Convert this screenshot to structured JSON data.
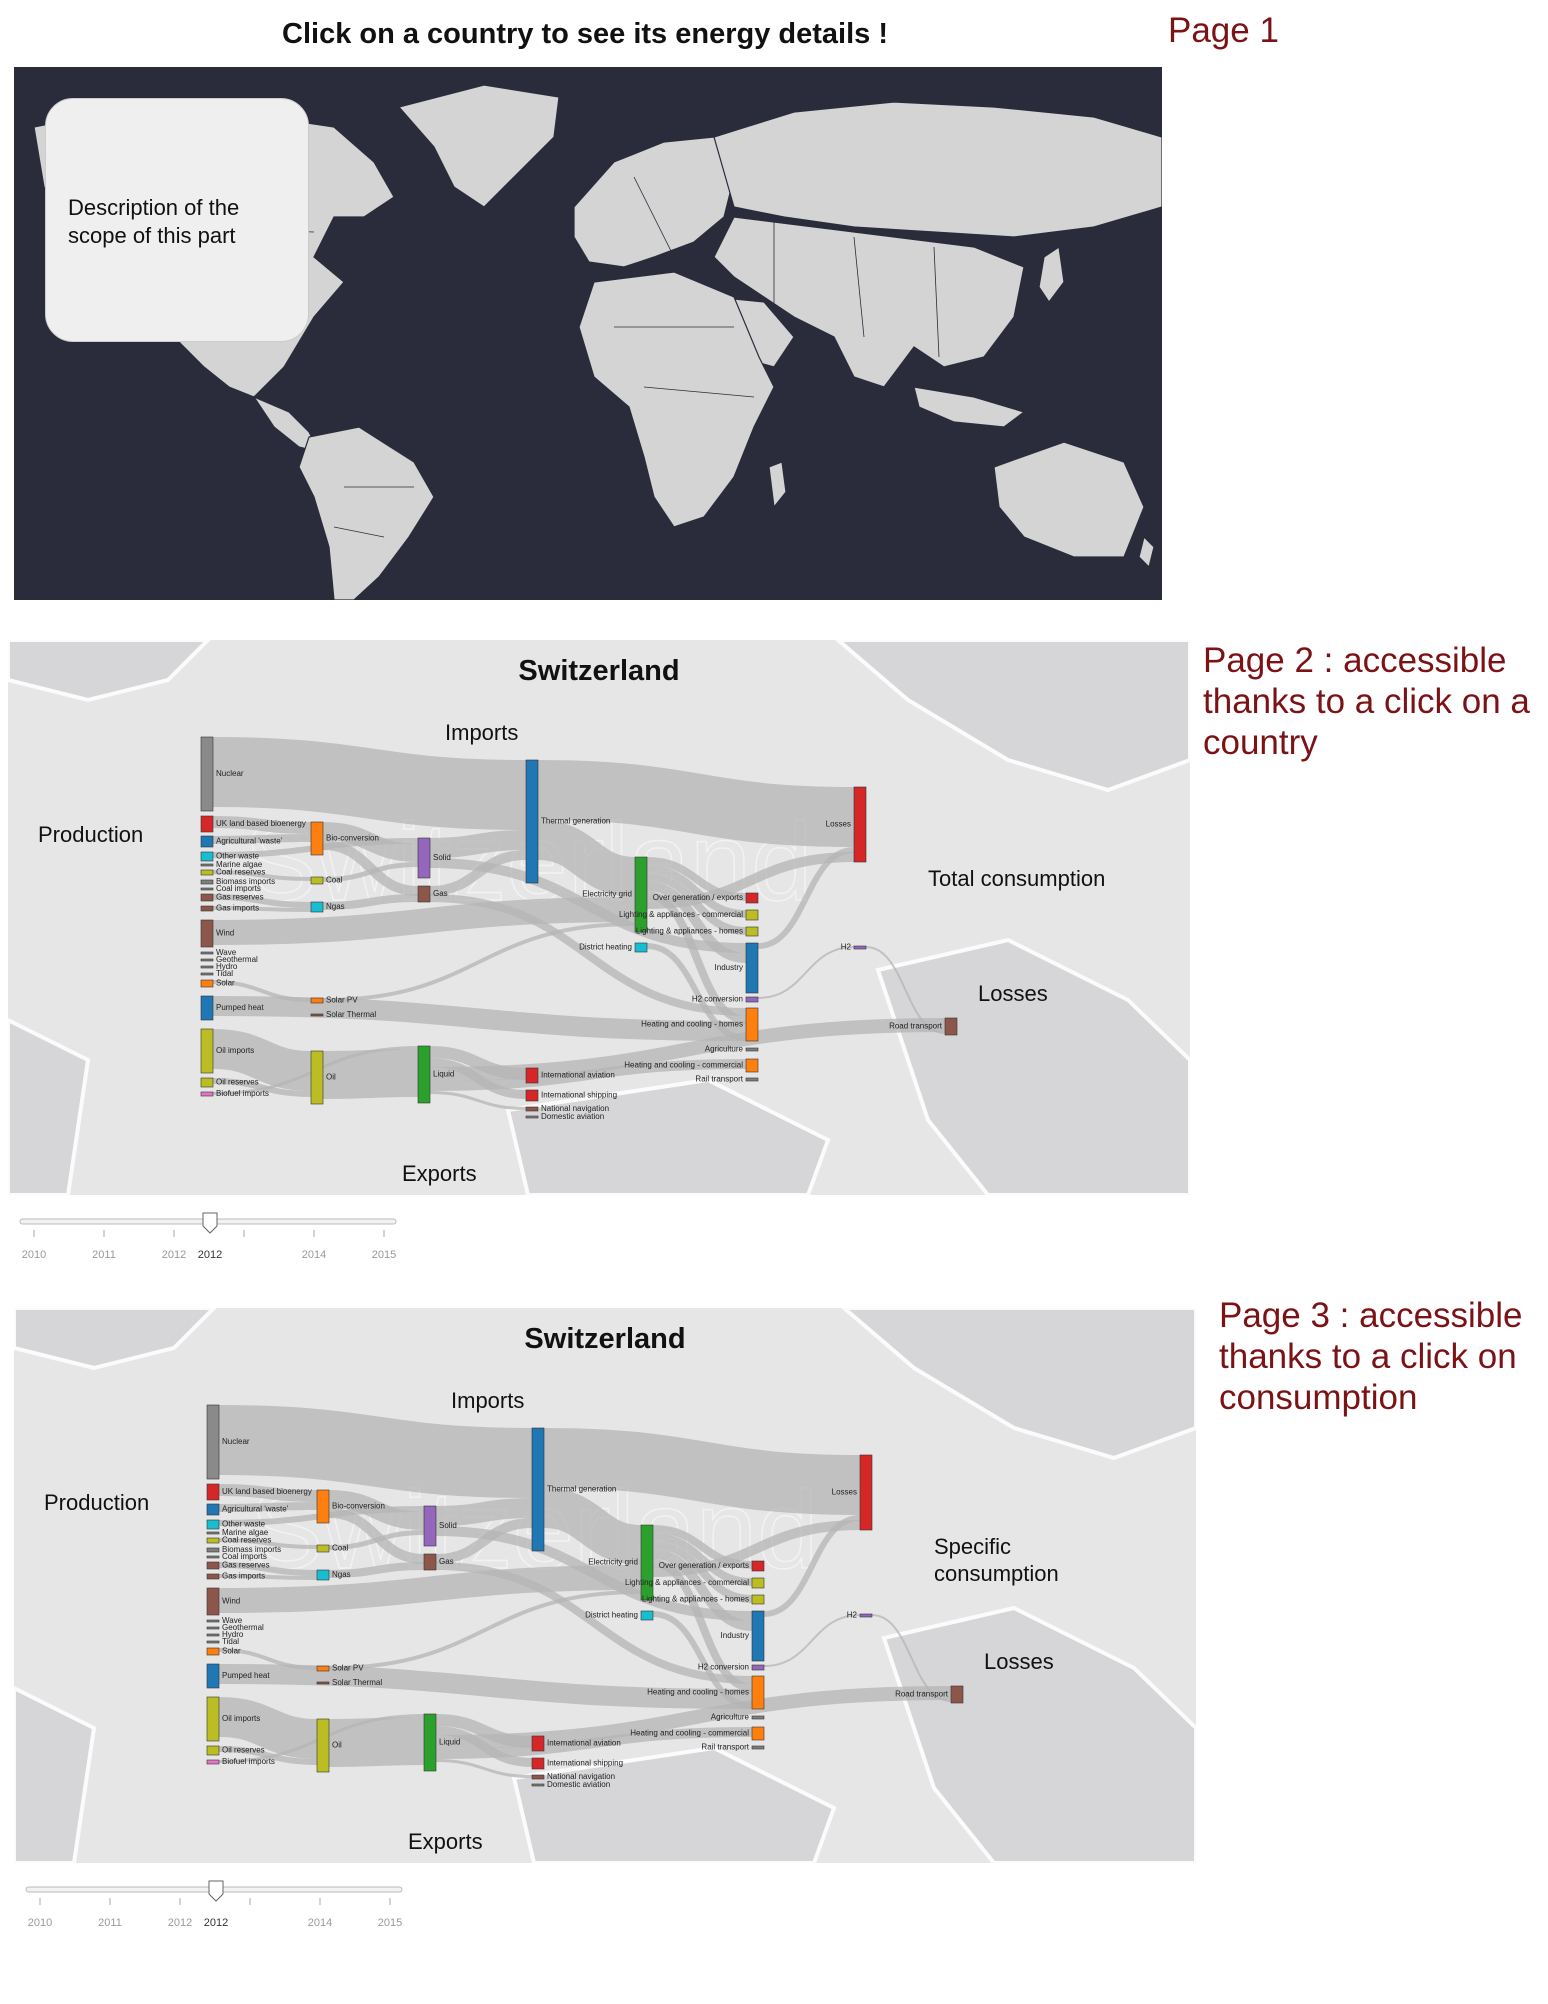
{
  "page1": {
    "title": "Click on a country to see its energy details !",
    "label": "Page 1",
    "description": "Description of the scope of this part"
  },
  "page2": {
    "label": "Page 2 : accessible thanks to a click on a country",
    "country": "Switzerland",
    "labels": {
      "production": "Production",
      "imports": "Imports",
      "exports": "Exports",
      "consumption": "Total consumption",
      "losses": "Losses"
    }
  },
  "page3": {
    "label": "Page 3 : accessible thanks to a click on consumption",
    "country": "Switzerland",
    "labels": {
      "production": "Production",
      "imports": "Imports",
      "exports": "Exports",
      "consumption": "Specific consumption",
      "losses": "Losses"
    }
  },
  "watermark": "Switzerland",
  "slider": {
    "years": [
      "2010",
      "2011",
      "2012",
      "2014",
      "2015"
    ],
    "selected": "2012"
  },
  "colors": {
    "map_background": "#2a2c3b",
    "land": "#d4d4d4",
    "panel": "#e6e6e7",
    "flow": "#b4b4b4",
    "accent_label": "#7b1216"
  },
  "sankey": {
    "nodes": [
      {
        "id": "nuclear",
        "label": "Nuclear",
        "color": "#8a8a8a"
      },
      {
        "id": "uk_bio",
        "label": "UK land based bioenergy",
        "color": "#d62728"
      },
      {
        "id": "agri",
        "label": "Agricultural 'waste'",
        "color": "#1f77b4"
      },
      {
        "id": "other_waste",
        "label": "Other waste",
        "color": "#17becf"
      },
      {
        "id": "marine",
        "label": "Marine algae",
        "color": "#7f7f7f"
      },
      {
        "id": "coal_res",
        "label": "Coal reserves",
        "color": "#bcbd22"
      },
      {
        "id": "bio_imp",
        "label": "Biomass imports",
        "color": "#7f7f7f"
      },
      {
        "id": "coal_imp",
        "label": "Coal imports",
        "color": "#7f7f7f"
      },
      {
        "id": "gas_res",
        "label": "Gas reserves",
        "color": "#8c564b"
      },
      {
        "id": "gas_imp",
        "label": "Gas imports",
        "color": "#8c564b"
      },
      {
        "id": "wind",
        "label": "Wind",
        "color": "#8c564b"
      },
      {
        "id": "wave",
        "label": "Wave",
        "color": "#7f7f7f"
      },
      {
        "id": "geo",
        "label": "Geothermal",
        "color": "#7f7f7f"
      },
      {
        "id": "hydro",
        "label": "Hydro",
        "color": "#7f7f7f"
      },
      {
        "id": "tidal",
        "label": "Tidal",
        "color": "#7f7f7f"
      },
      {
        "id": "solar",
        "label": "Solar",
        "color": "#ff7f0e"
      },
      {
        "id": "pumped",
        "label": "Pumped heat",
        "color": "#1f77b4"
      },
      {
        "id": "oil_imp",
        "label": "Oil imports",
        "color": "#bcbd22"
      },
      {
        "id": "oil_res",
        "label": "Oil reserves",
        "color": "#bcbd22"
      },
      {
        "id": "biofuel",
        "label": "Biofuel imports",
        "color": "#e377c2"
      },
      {
        "id": "bioconv",
        "label": "Bio-conversion",
        "color": "#ff7f0e"
      },
      {
        "id": "coal",
        "label": "Coal",
        "color": "#bcbd22"
      },
      {
        "id": "ngas",
        "label": "Ngas",
        "color": "#17becf"
      },
      {
        "id": "solar_pv",
        "label": "Solar PV",
        "color": "#ff7f0e"
      },
      {
        "id": "solar_th",
        "label": "Solar Thermal",
        "color": "#8c564b"
      },
      {
        "id": "oil",
        "label": "Oil",
        "color": "#bcbd22"
      },
      {
        "id": "solid",
        "label": "Solid",
        "color": "#9467bd"
      },
      {
        "id": "gas",
        "label": "Gas",
        "color": "#8c564b"
      },
      {
        "id": "liquid",
        "label": "Liquid",
        "color": "#2ca02c"
      },
      {
        "id": "thermal",
        "label": "Thermal generation",
        "color": "#1f77b4"
      },
      {
        "id": "grid",
        "label": "Electricity grid",
        "color": "#2ca02c"
      },
      {
        "id": "district",
        "label": "District heating",
        "color": "#17becf"
      },
      {
        "id": "intl_av",
        "label": "International aviation",
        "color": "#d62728"
      },
      {
        "id": "intl_ship",
        "label": "International shipping",
        "color": "#d62728"
      },
      {
        "id": "nat_nav",
        "label": "National navigation",
        "color": "#8c564b"
      },
      {
        "id": "dom_av",
        "label": "Domestic aviation",
        "color": "#7f7f7f"
      },
      {
        "id": "overgen",
        "label": "Over generation / exports",
        "color": "#d62728"
      },
      {
        "id": "light_com",
        "label": "Lighting & appliances - commercial",
        "color": "#bcbd22"
      },
      {
        "id": "light_home",
        "label": "Lighting & appliances - homes",
        "color": "#bcbd22"
      },
      {
        "id": "industry",
        "label": "Industry",
        "color": "#1f77b4"
      },
      {
        "id": "h2conv",
        "label": "H2 conversion",
        "color": "#9467bd"
      },
      {
        "id": "heat_home",
        "label": "Heating and cooling - homes",
        "color": "#ff7f0e"
      },
      {
        "id": "agriculture",
        "label": "Agriculture",
        "color": "#7f7f7f"
      },
      {
        "id": "heat_com",
        "label": "Heating and cooling - commercial",
        "color": "#ff7f0e"
      },
      {
        "id": "rail",
        "label": "Rail transport",
        "color": "#7f7f7f"
      },
      {
        "id": "losses",
        "label": "Losses",
        "color": "#d62728"
      },
      {
        "id": "h2",
        "label": "H2",
        "color": "#9467bd"
      },
      {
        "id": "road",
        "label": "Road transport",
        "color": "#8c564b"
      }
    ]
  }
}
